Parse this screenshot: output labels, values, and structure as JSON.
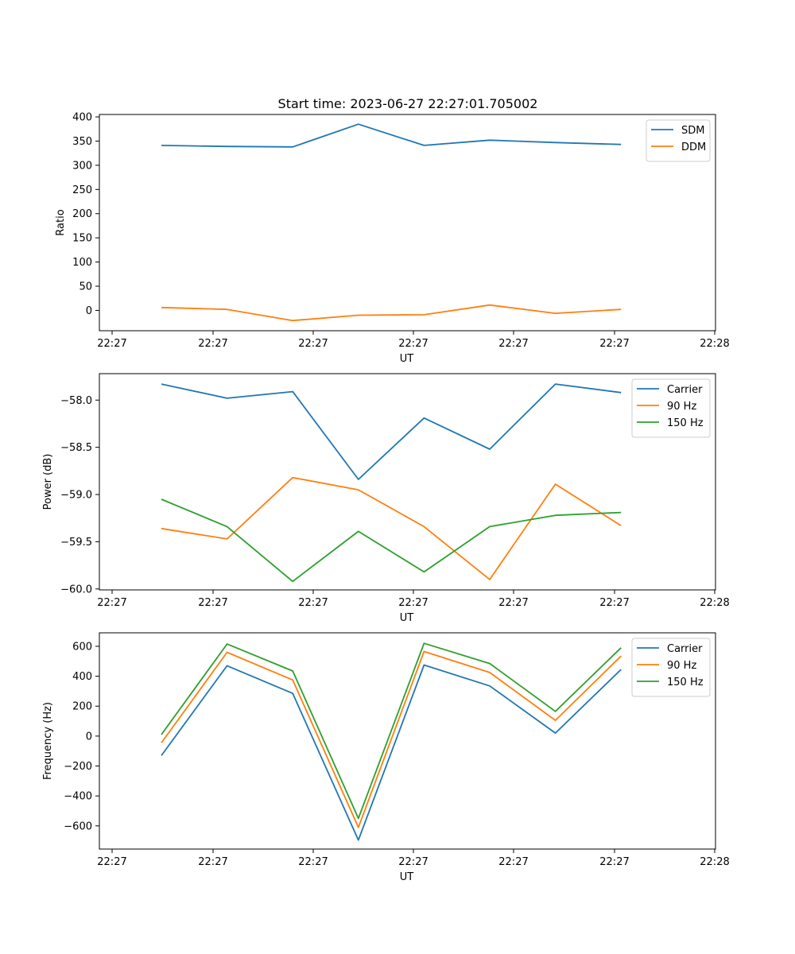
{
  "title": "Start time: 2023-06-27 22:27:01.705002",
  "charts": [
    {
      "type": "line",
      "xlabel": "UT",
      "ylabel": "Ratio",
      "x_tick_labels": [
        "22:27",
        "22:27",
        "22:27",
        "22:27",
        "22:27",
        "22:27",
        "22:28"
      ],
      "y_ticks": [
        0,
        50,
        100,
        150,
        200,
        250,
        300,
        350,
        400
      ],
      "ylim": [
        -42,
        405
      ],
      "legend_placement": "top-right",
      "grid": false,
      "series": [
        {
          "name": "SDM",
          "color": "#1f77b4",
          "values": [
            341,
            339,
            338,
            385,
            341,
            352,
            347,
            343
          ]
        },
        {
          "name": "DDM",
          "color": "#ff7f0e",
          "values": [
            6,
            2,
            -21,
            -10,
            -9,
            11,
            -6,
            2
          ]
        }
      ]
    },
    {
      "type": "line",
      "xlabel": "UT",
      "ylabel": "Power (dB)",
      "x_tick_labels": [
        "22:27",
        "22:27",
        "22:27",
        "22:27",
        "22:27",
        "22:27",
        "22:28"
      ],
      "y_ticks": [
        -60.0,
        -59.5,
        -59.0,
        -58.5,
        -58.0
      ],
      "y_tick_labels": [
        "−60.0",
        "−59.5",
        "−59.0",
        "−58.5",
        "−58.0"
      ],
      "ylim": [
        -60.01,
        -57.72
      ],
      "legend_placement": "top-right",
      "grid": false,
      "series": [
        {
          "name": "Carrier",
          "color": "#1f77b4",
          "values": [
            -57.83,
            -57.98,
            -57.91,
            -58.84,
            -58.19,
            -58.52,
            -57.83,
            -57.92
          ]
        },
        {
          "name": "90 Hz",
          "color": "#ff7f0e",
          "values": [
            -59.36,
            -59.47,
            -58.82,
            -58.95,
            -59.34,
            -59.9,
            -58.89,
            -59.33
          ]
        },
        {
          "name": "150 Hz",
          "color": "#2ca02c",
          "values": [
            -59.05,
            -59.34,
            -59.92,
            -59.39,
            -59.82,
            -59.34,
            -59.22,
            -59.19
          ]
        }
      ]
    },
    {
      "type": "line",
      "xlabel": "UT",
      "ylabel": "Frequency (Hz)",
      "x_tick_labels": [
        "22:27",
        "22:27",
        "22:27",
        "22:27",
        "22:27",
        "22:27",
        "22:28"
      ],
      "y_ticks": [
        -600,
        -400,
        -200,
        0,
        200,
        400,
        600
      ],
      "y_tick_labels": [
        "−600",
        "−400",
        "−200",
        "0",
        "200",
        "400",
        "600"
      ],
      "ylim": [
        -755,
        690
      ],
      "legend_placement": "top-right",
      "grid": false,
      "series": [
        {
          "name": "Carrier",
          "color": "#1f77b4",
          "values": [
            -130,
            470,
            285,
            -695,
            475,
            335,
            20,
            445
          ]
        },
        {
          "name": "90 Hz",
          "color": "#ff7f0e",
          "values": [
            -45,
            560,
            375,
            -610,
            565,
            425,
            105,
            535
          ]
        },
        {
          "name": "150 Hz",
          "color": "#2ca02c",
          "values": [
            10,
            615,
            435,
            -550,
            620,
            485,
            165,
            590
          ]
        }
      ]
    }
  ]
}
